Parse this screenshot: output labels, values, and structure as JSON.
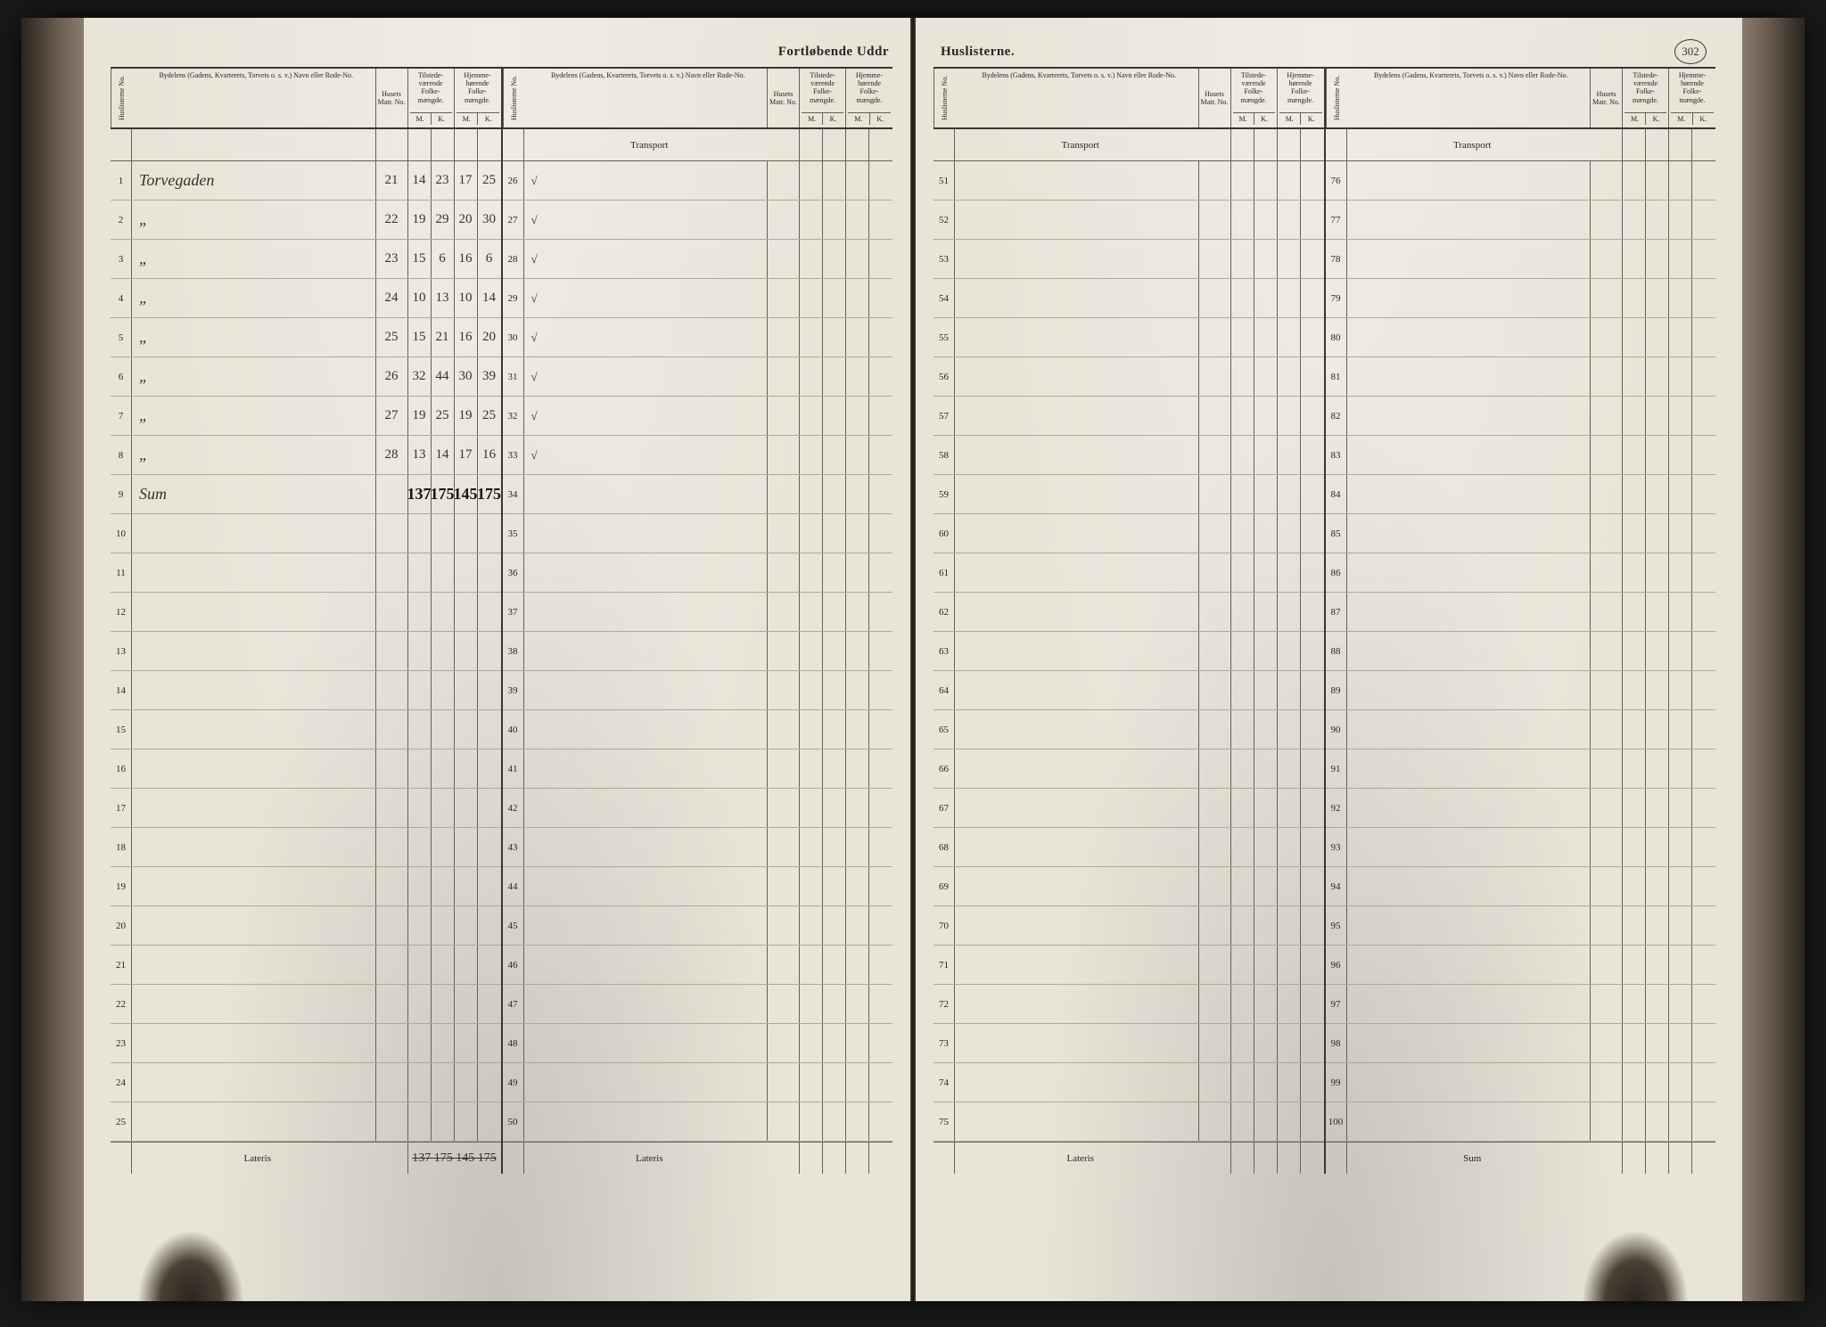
{
  "title_left": "Fortløbende Uddr",
  "title_right": "Huslisterne.",
  "page_number": "302",
  "headers": {
    "huslisterne_no": "Huslisterne No.",
    "bydelens": "Bydelens (Gadens, Kvarterets, Torvets o. s. v.) Navn eller Rode-No.",
    "husets_matr": "Husets Matr. No.",
    "tilstede": "Tilstede-værende Folke-mængde.",
    "hjemme": "Hjemme-hørende Folke-mængde.",
    "m": "M.",
    "k": "K."
  },
  "transport": "Transport",
  "lateris": "Lateris",
  "sum": "Sum",
  "left_rows": [
    {
      "no": "1",
      "byd": "Torvegaden",
      "matr": "21",
      "tm": "14",
      "tk": "23",
      "hm": "17",
      "hk": "25",
      "no2": "26",
      "chk": "√"
    },
    {
      "no": "2",
      "byd": "„",
      "matr": "22",
      "tm": "19",
      "tk": "29",
      "hm": "20",
      "hk": "30",
      "no2": "27",
      "chk": "√"
    },
    {
      "no": "3",
      "byd": "„",
      "matr": "23",
      "tm": "15",
      "tk": "6",
      "hm": "16",
      "hk": "6",
      "no2": "28",
      "chk": "√"
    },
    {
      "no": "4",
      "byd": "„",
      "matr": "24",
      "tm": "10",
      "tk": "13",
      "hm": "10",
      "hk": "14",
      "no2": "29",
      "chk": "√"
    },
    {
      "no": "5",
      "byd": "„",
      "matr": "25",
      "tm": "15",
      "tk": "21",
      "hm": "16",
      "hk": "20",
      "no2": "30",
      "chk": "√"
    },
    {
      "no": "6",
      "byd": "„",
      "matr": "26",
      "tm": "32",
      "tk": "44",
      "hm": "30",
      "hk": "39",
      "no2": "31",
      "chk": "√"
    },
    {
      "no": "7",
      "byd": "„",
      "matr": "27",
      "tm": "19",
      "tk": "25",
      "hm": "19",
      "hk": "25",
      "no2": "32",
      "chk": "√"
    },
    {
      "no": "8",
      "byd": "„",
      "matr": "28",
      "tm": "13",
      "tk": "14",
      "hm": "17",
      "hk": "16",
      "no2": "33",
      "chk": "√"
    },
    {
      "no": "9",
      "byd": "Sum",
      "matr": "",
      "tm": "137",
      "tk": "175",
      "hm": "145",
      "hk": "175",
      "no2": "34",
      "chk": "",
      "bold": true
    },
    {
      "no": "10",
      "byd": "",
      "matr": "",
      "tm": "",
      "tk": "",
      "hm": "",
      "hk": "",
      "no2": "35",
      "chk": ""
    },
    {
      "no": "11",
      "byd": "",
      "matr": "",
      "tm": "",
      "tk": "",
      "hm": "",
      "hk": "",
      "no2": "36",
      "chk": ""
    },
    {
      "no": "12",
      "byd": "",
      "matr": "",
      "tm": "",
      "tk": "",
      "hm": "",
      "hk": "",
      "no2": "37",
      "chk": ""
    },
    {
      "no": "13",
      "byd": "",
      "matr": "",
      "tm": "",
      "tk": "",
      "hm": "",
      "hk": "",
      "no2": "38",
      "chk": ""
    },
    {
      "no": "14",
      "byd": "",
      "matr": "",
      "tm": "",
      "tk": "",
      "hm": "",
      "hk": "",
      "no2": "39",
      "chk": ""
    },
    {
      "no": "15",
      "byd": "",
      "matr": "",
      "tm": "",
      "tk": "",
      "hm": "",
      "hk": "",
      "no2": "40",
      "chk": ""
    },
    {
      "no": "16",
      "byd": "",
      "matr": "",
      "tm": "",
      "tk": "",
      "hm": "",
      "hk": "",
      "no2": "41",
      "chk": ""
    },
    {
      "no": "17",
      "byd": "",
      "matr": "",
      "tm": "",
      "tk": "",
      "hm": "",
      "hk": "",
      "no2": "42",
      "chk": ""
    },
    {
      "no": "18",
      "byd": "",
      "matr": "",
      "tm": "",
      "tk": "",
      "hm": "",
      "hk": "",
      "no2": "43",
      "chk": ""
    },
    {
      "no": "19",
      "byd": "",
      "matr": "",
      "tm": "",
      "tk": "",
      "hm": "",
      "hk": "",
      "no2": "44",
      "chk": ""
    },
    {
      "no": "20",
      "byd": "",
      "matr": "",
      "tm": "",
      "tk": "",
      "hm": "",
      "hk": "",
      "no2": "45",
      "chk": ""
    },
    {
      "no": "21",
      "byd": "",
      "matr": "",
      "tm": "",
      "tk": "",
      "hm": "",
      "hk": "",
      "no2": "46",
      "chk": ""
    },
    {
      "no": "22",
      "byd": "",
      "matr": "",
      "tm": "",
      "tk": "",
      "hm": "",
      "hk": "",
      "no2": "47",
      "chk": ""
    },
    {
      "no": "23",
      "byd": "",
      "matr": "",
      "tm": "",
      "tk": "",
      "hm": "",
      "hk": "",
      "no2": "48",
      "chk": ""
    },
    {
      "no": "24",
      "byd": "",
      "matr": "",
      "tm": "",
      "tk": "",
      "hm": "",
      "hk": "",
      "no2": "49",
      "chk": ""
    },
    {
      "no": "25",
      "byd": "",
      "matr": "",
      "tm": "",
      "tk": "",
      "hm": "",
      "hk": "",
      "no2": "50",
      "chk": ""
    }
  ],
  "right_section3": [
    "51",
    "52",
    "53",
    "54",
    "55",
    "56",
    "57",
    "58",
    "59",
    "60",
    "61",
    "62",
    "63",
    "64",
    "65",
    "66",
    "67",
    "68",
    "69",
    "70",
    "71",
    "72",
    "73",
    "74",
    "75"
  ],
  "right_section4": [
    "76",
    "77",
    "78",
    "79",
    "80",
    "81",
    "82",
    "83",
    "84",
    "85",
    "86",
    "87",
    "88",
    "89",
    "90",
    "91",
    "92",
    "93",
    "94",
    "95",
    "96",
    "97",
    "98",
    "99",
    "100"
  ],
  "struck_text": "137 175 145 175",
  "colors": {
    "page_bg": "#e8e4d8",
    "ink": "#2a2520",
    "rule": "#6a6055",
    "rule_heavy": "#3a3530",
    "hand": "#3a3025"
  }
}
